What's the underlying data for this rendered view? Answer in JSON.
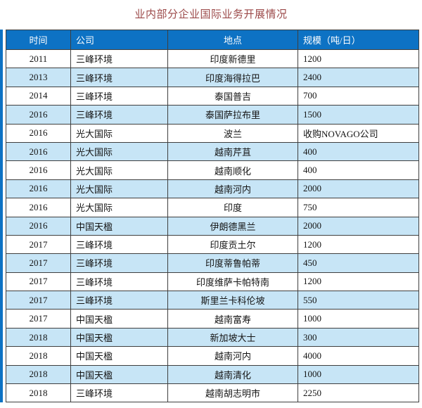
{
  "title": "业内部分企业国际业务开展情况",
  "colors": {
    "header_bg": "#0d72c4",
    "stripe": "#c7e5f6",
    "border": "#3f3f3f",
    "title": "#9c4a4a"
  },
  "chart_data": {
    "type": "table",
    "title": "业内部分企业国际业务开展情况",
    "columns": [
      "时间",
      "公司",
      "地点",
      "规模（吨/日）"
    ],
    "rows": [
      [
        "2011",
        "三峰环境",
        "印度新德里",
        "1200"
      ],
      [
        "2013",
        "三峰环境",
        "印度海得拉巴",
        "2400"
      ],
      [
        "2014",
        "三峰环境",
        "泰国普吉",
        "700"
      ],
      [
        "2016",
        "三峰环境",
        "泰国萨拉布里",
        "1500"
      ],
      [
        "2016",
        "光大国际",
        "波兰",
        "收购NOVAGO公司"
      ],
      [
        "2016",
        "光大国际",
        "越南芹苴",
        "400"
      ],
      [
        "2016",
        "光大国际",
        "越南顺化",
        "400"
      ],
      [
        "2016",
        "光大国际",
        "越南河内",
        "2000"
      ],
      [
        "2016",
        "光大国际",
        "印度",
        "750"
      ],
      [
        "2016",
        "中国天楹",
        "伊朗德黑兰",
        "2000"
      ],
      [
        "2017",
        "三峰环境",
        "印度贡土尔",
        "1200"
      ],
      [
        "2017",
        "三峰环境",
        "印度蒂鲁帕蒂",
        "450"
      ],
      [
        "2017",
        "三峰环境",
        "印度维萨卡帕特南",
        "1200"
      ],
      [
        "2017",
        "三峰环境",
        "斯里兰卡科伦坡",
        "550"
      ],
      [
        "2017",
        "中国天楹",
        "越南富寿",
        "1000"
      ],
      [
        "2018",
        "中国天楹",
        "新加坡大士",
        "300"
      ],
      [
        "2018",
        "中国天楹",
        "越南河内",
        "4000"
      ],
      [
        "2018",
        "中国天楹",
        "越南清化",
        "1000"
      ],
      [
        "2018",
        "三峰环境",
        "越南胡志明市",
        "2250"
      ]
    ],
    "layout": {
      "striped": true,
      "stripe_rows": "even",
      "column_align": [
        "center",
        "left",
        "center",
        "left"
      ]
    }
  }
}
